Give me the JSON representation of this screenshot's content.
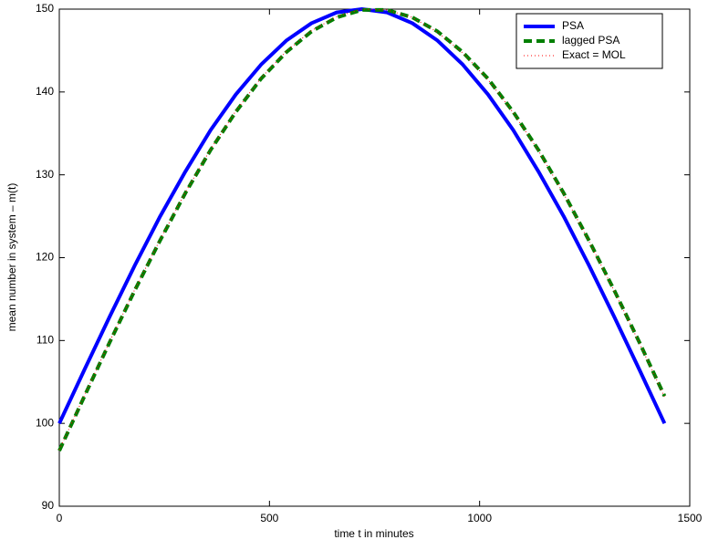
{
  "chart_data": {
    "type": "line",
    "xlabel": "time t in minutes",
    "ylabel": "mean number in system – m(t)",
    "x": [
      0,
      60,
      120,
      180,
      240,
      300,
      360,
      420,
      480,
      540,
      600,
      660,
      720,
      780,
      840,
      900,
      960,
      1020,
      1080,
      1140,
      1200,
      1260,
      1320,
      1380,
      1440
    ],
    "series": [
      {
        "name": "PSA",
        "color": "#0000ff",
        "style": "solid",
        "values": [
          100,
          106.5,
          112.9,
          119.1,
          125,
          130.4,
          135.4,
          139.7,
          143.3,
          146.2,
          148.3,
          149.6,
          150,
          149.6,
          148.3,
          146.2,
          143.3,
          139.7,
          135.4,
          130.4,
          125,
          119.1,
          112.9,
          106.5,
          100
        ]
      },
      {
        "name": "lagged PSA",
        "color": "#007f00",
        "style": "dashed",
        "values": [
          96.7,
          103.3,
          109.8,
          116.1,
          122.1,
          127.8,
          133.0,
          137.6,
          141.6,
          144.8,
          147.3,
          149.0,
          149.9,
          149.9,
          149.0,
          147.3,
          144.8,
          141.6,
          137.6,
          133.0,
          127.8,
          122.1,
          116.1,
          109.8,
          103.3
        ]
      },
      {
        "name": "Exact = MOL",
        "color": "#ff0000",
        "style": "dotted",
        "values": [
          96.8,
          103.4,
          109.9,
          116.2,
          122.2,
          127.9,
          133.1,
          137.7,
          141.7,
          144.9,
          147.4,
          149.1,
          150,
          149.9,
          149.0,
          147.2,
          144.7,
          141.5,
          137.5,
          132.9,
          127.7,
          122.0,
          116.0,
          109.7,
          103.2
        ]
      }
    ],
    "xlim": [
      0,
      1500
    ],
    "xticks": [
      0,
      500,
      1000,
      1500
    ],
    "ylim": [
      90,
      150
    ],
    "yticks": [
      90,
      100,
      110,
      120,
      130,
      140,
      150
    ],
    "grid": false,
    "legend": "upper right"
  }
}
